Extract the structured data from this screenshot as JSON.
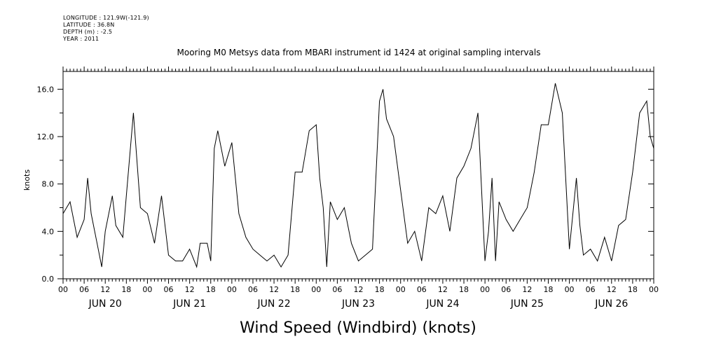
{
  "metadata": [
    {
      "label": "LONGITUDE",
      "value": "121.9W(-121.9)"
    },
    {
      "label": "LATITUDE",
      "value": "36.8N"
    },
    {
      "label": "DEPTH (m)",
      "value": "-2.5"
    },
    {
      "label": "YEAR",
      "value": "2011"
    }
  ],
  "chart_data": {
    "type": "line",
    "title": "Mooring M0 Metsys data from MBARI instrument id 1424 at original sampling intervals",
    "subtitle": "Wind Speed (Windbird) (knots)",
    "xlabel": "",
    "ylabel": "knots",
    "ylim": [
      0,
      17.5
    ],
    "xlim": [
      "2011-06-20 00:00",
      "2011-06-27 00:00"
    ],
    "y_ticks": [
      "0.0",
      "4.0",
      "8.0",
      "12.0",
      "16.0"
    ],
    "y_tick_values": [
      0,
      4,
      8,
      12,
      16
    ],
    "hour_tick_labels": [
      "00",
      "06",
      "12",
      "18",
      "00",
      "06",
      "12",
      "18",
      "00",
      "06",
      "12",
      "18",
      "00",
      "06",
      "12",
      "18",
      "00",
      "06",
      "12",
      "18",
      "00",
      "06",
      "12",
      "18",
      "00",
      "06",
      "12",
      "18",
      "00"
    ],
    "day_labels": [
      "JUN 20",
      "JUN 21",
      "JUN 22",
      "JUN 23",
      "JUN 24",
      "JUN 25",
      "JUN 26"
    ],
    "grid": false,
    "series": [
      {
        "name": "",
        "x": [
          "2011-06-20 00:00",
          "2011-06-20 02:00",
          "2011-06-20 04:00",
          "2011-06-20 06:00",
          "2011-06-20 07:00",
          "2011-06-20 08:00",
          "2011-06-20 10:00",
          "2011-06-20 11:00",
          "2011-06-20 12:00",
          "2011-06-20 14:00",
          "2011-06-20 15:00",
          "2011-06-20 17:00",
          "2011-06-20 18:00",
          "2011-06-20 20:00",
          "2011-06-20 22:00",
          "2011-06-21 00:00",
          "2011-06-21 02:00",
          "2011-06-21 04:00",
          "2011-06-21 06:00",
          "2011-06-21 08:00",
          "2011-06-21 10:00",
          "2011-06-21 12:00",
          "2011-06-21 14:00",
          "2011-06-21 15:00",
          "2011-06-21 17:00",
          "2011-06-21 18:00",
          "2011-06-21 19:00",
          "2011-06-21 20:00",
          "2011-06-21 22:00",
          "2011-06-22 00:00",
          "2011-06-22 02:00",
          "2011-06-22 04:00",
          "2011-06-22 06:00",
          "2011-06-22 08:00",
          "2011-06-22 10:00",
          "2011-06-22 12:00",
          "2011-06-22 14:00",
          "2011-06-22 16:00",
          "2011-06-22 18:00",
          "2011-06-22 20:00",
          "2011-06-22 22:00",
          "2011-06-23 00:00",
          "2011-06-23 01:00",
          "2011-06-23 02:00",
          "2011-06-23 03:00",
          "2011-06-23 04:00",
          "2011-06-23 06:00",
          "2011-06-23 08:00",
          "2011-06-23 10:00",
          "2011-06-23 12:00",
          "2011-06-23 14:00",
          "2011-06-23 16:00",
          "2011-06-23 18:00",
          "2011-06-23 19:00",
          "2011-06-23 20:00",
          "2011-06-23 22:00",
          "2011-06-24 00:00",
          "2011-06-24 02:00",
          "2011-06-24 04:00",
          "2011-06-24 06:00",
          "2011-06-24 08:00",
          "2011-06-24 10:00",
          "2011-06-24 12:00",
          "2011-06-24 14:00",
          "2011-06-24 16:00",
          "2011-06-24 18:00",
          "2011-06-24 20:00",
          "2011-06-24 22:00",
          "2011-06-25 00:00",
          "2011-06-25 01:00",
          "2011-06-25 02:00",
          "2011-06-25 03:00",
          "2011-06-25 04:00",
          "2011-06-25 06:00",
          "2011-06-25 08:00",
          "2011-06-25 10:00",
          "2011-06-25 12:00",
          "2011-06-25 14:00",
          "2011-06-25 16:00",
          "2011-06-25 18:00",
          "2011-06-25 20:00",
          "2011-06-25 22:00",
          "2011-06-26 00:00",
          "2011-06-26 02:00",
          "2011-06-26 03:00",
          "2011-06-26 04:00",
          "2011-06-26 06:00",
          "2011-06-26 08:00",
          "2011-06-26 10:00",
          "2011-06-26 12:00",
          "2011-06-26 14:00",
          "2011-06-26 16:00",
          "2011-06-26 18:00",
          "2011-06-26 20:00",
          "2011-06-26 22:00",
          "2011-06-26 23:00",
          "2011-06-27 00:00"
        ],
        "y": [
          5.5,
          6.5,
          3.5,
          5.0,
          8.5,
          5.5,
          2.5,
          1.0,
          4.0,
          7.0,
          4.5,
          3.5,
          7.0,
          14.0,
          6.0,
          5.5,
          3.0,
          7.0,
          2.0,
          1.5,
          1.5,
          2.5,
          1.0,
          3.0,
          3.0,
          1.5,
          11.0,
          12.5,
          9.5,
          11.5,
          5.5,
          3.5,
          2.5,
          2.0,
          1.5,
          2.0,
          1.0,
          2.0,
          9.0,
          9.0,
          12.5,
          13.0,
          8.5,
          6.0,
          1.0,
          6.5,
          5.0,
          6.0,
          3.0,
          1.5,
          2.0,
          2.5,
          15.0,
          16.0,
          13.5,
          12.0,
          7.5,
          3.0,
          4.0,
          1.5,
          6.0,
          5.5,
          7.0,
          4.0,
          8.5,
          9.5,
          11.0,
          14.0,
          1.5,
          4.0,
          8.5,
          1.5,
          6.5,
          5.0,
          4.0,
          5.0,
          6.0,
          9.0,
          13.0,
          13.0,
          16.5,
          14.0,
          2.5,
          8.5,
          4.5,
          2.0,
          2.5,
          1.5,
          3.5,
          1.5,
          4.5,
          5.0,
          9.0,
          14.0,
          15.0,
          12.0,
          11.0
        ]
      }
    ]
  }
}
